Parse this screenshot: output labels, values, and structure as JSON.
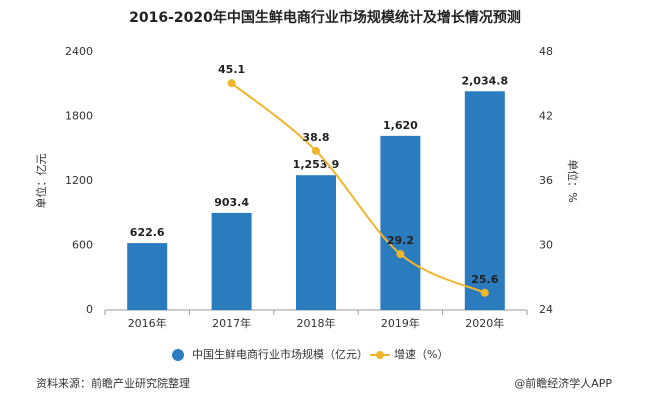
{
  "chart_data": {
    "type": "bar_line",
    "title": "2016-2020年中国生鲜电商行业市场规模统计及增长情况预测",
    "categories": [
      "2016年",
      "2017年",
      "2018年",
      "2019年",
      "2020年"
    ],
    "series": [
      {
        "name": "中国生鲜电商行业市场规模（亿元）",
        "type": "bar",
        "color": "#2b7bbf",
        "values": [
          622.6,
          903.4,
          1253.9,
          1620,
          2034.8
        ],
        "value_labels": [
          "622.6",
          "903.4",
          "1,253.9",
          "1,620",
          "2,034.8"
        ]
      },
      {
        "name": "增速（%）",
        "type": "line",
        "axis": "y2",
        "color": "#efb52b",
        "values": [
          null,
          45.1,
          38.8,
          29.2,
          25.6
        ]
      }
    ],
    "ylabel": "单位：亿元",
    "y2label": "单位：%",
    "ylim": [
      0,
      2400
    ],
    "yticks": [
      0,
      600,
      1200,
      1800,
      2400
    ],
    "y2lim": [
      24,
      48
    ],
    "y2ticks": [
      24,
      30,
      36,
      42,
      48
    ],
    "source": "资料来源：前瞻产业研究院整理",
    "credit": "@前瞻经济学人APP"
  }
}
